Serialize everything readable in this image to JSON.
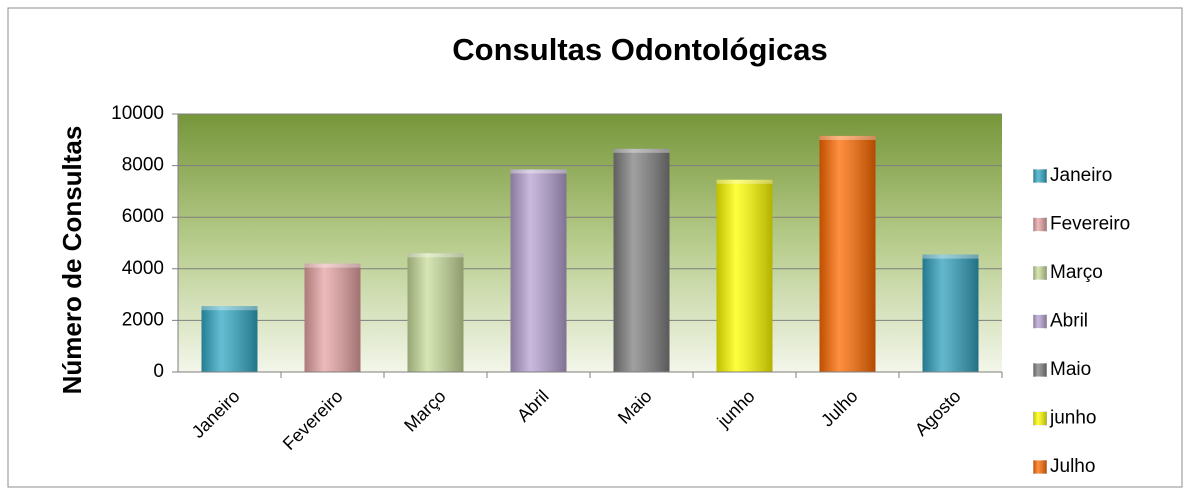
{
  "chart_data": {
    "type": "bar",
    "title": "Consultas Odontológicas",
    "y_label": "Número de Consultas",
    "categories": [
      "Janeiro",
      "Fevereiro",
      "Março",
      "Abril",
      "Maio",
      "junho",
      "Julho",
      "Agosto"
    ],
    "values": [
      2550,
      4200,
      4600,
      7850,
      8650,
      7450,
      9150,
      4550
    ],
    "colors": [
      "#31a8c4",
      "#e6a3a3",
      "#c9dd9b",
      "#b7a3d2",
      "#808080",
      "#ffff00",
      "#ff6a00",
      "#31a0bc"
    ],
    "ylim": [
      0,
      10000
    ],
    "yticks": [
      0,
      2000,
      4000,
      6000,
      8000,
      10000
    ],
    "grid": true,
    "legend": "right"
  }
}
